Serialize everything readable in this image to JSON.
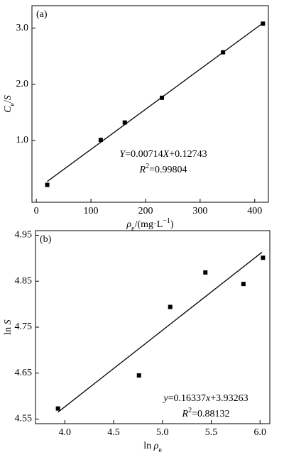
{
  "chart_data": [
    {
      "type": "scatter",
      "panel_label": "(a)",
      "xlabel": [
        {
          "text": "ρ",
          "style": "italic"
        },
        {
          "text": "e",
          "style": "sub"
        },
        {
          "text": "/(mg·L"
        },
        {
          "text": "−1",
          "style": "sup"
        },
        {
          "text": ")"
        }
      ],
      "ylabel": [
        {
          "text": "C",
          "style": "italic"
        },
        {
          "text": "e",
          "style": "sub"
        },
        {
          "text": "/"
        },
        {
          "text": "S",
          "style": "italic"
        }
      ],
      "annotations": [
        [
          {
            "text": "Y",
            "style": "italic"
          },
          {
            "text": "=0.00714"
          },
          {
            "text": "X",
            "style": "italic"
          },
          {
            "text": "+0.12743"
          }
        ],
        [
          {
            "text": "R",
            "style": "italic"
          },
          {
            "text": "2",
            "style": "sup"
          },
          {
            "text": "=0.99804"
          }
        ]
      ],
      "x": [
        20,
        118,
        162,
        230,
        342,
        415
      ],
      "values": [
        0.21,
        1.01,
        1.32,
        1.76,
        2.57,
        3.08
      ],
      "fit": {
        "x": [
          20,
          415
        ],
        "values": [
          0.27,
          3.09
        ]
      },
      "color": "#000000",
      "xlim": [
        -8,
        425
      ],
      "ylim": [
        -0.1,
        3.4
      ],
      "xticks": [
        0,
        100,
        200,
        300,
        400
      ],
      "yticks": [
        {
          "value": 1,
          "label": "1.0"
        },
        {
          "value": 2,
          "label": "2.0"
        },
        {
          "value": 3,
          "label": "3.0"
        }
      ]
    },
    {
      "type": "scatter",
      "panel_label": "(b)",
      "xlabel": [
        {
          "text": "ln "
        },
        {
          "text": "ρ",
          "style": "italic"
        },
        {
          "text": "e",
          "style": "sub"
        }
      ],
      "ylabel": [
        {
          "text": "ln "
        },
        {
          "text": "S",
          "style": "italic"
        }
      ],
      "annotations": [
        [
          {
            "text": "y",
            "style": "italic"
          },
          {
            "text": "=0.16337"
          },
          {
            "text": "x",
            "style": "italic"
          },
          {
            "text": "+3.93263"
          }
        ],
        [
          {
            "text": "R",
            "style": "italic"
          },
          {
            "text": "2",
            "style": "sup"
          },
          {
            "text": "=0.88132"
          }
        ]
      ],
      "x": [
        3.93,
        4.76,
        5.08,
        5.44,
        5.83,
        6.03
      ],
      "values": [
        4.573,
        4.645,
        4.794,
        4.869,
        4.844,
        4.901
      ],
      "fit": {
        "x": [
          3.93,
          6.02
        ],
        "values": [
          4.565,
          4.913
        ]
      },
      "color": "#000000",
      "xlim": [
        3.7,
        6.1
      ],
      "ylim": [
        4.54,
        4.96
      ],
      "xticks": [
        {
          "value": 4,
          "label": "4.0"
        },
        {
          "value": 4.5,
          "label": "4.5"
        },
        {
          "value": 5,
          "label": "5.0"
        },
        {
          "value": 5.5,
          "label": "5.5"
        },
        {
          "value": 6,
          "label": "6.0"
        }
      ],
      "yticks": [
        4.55,
        4.65,
        4.75,
        4.85,
        4.95
      ]
    }
  ]
}
